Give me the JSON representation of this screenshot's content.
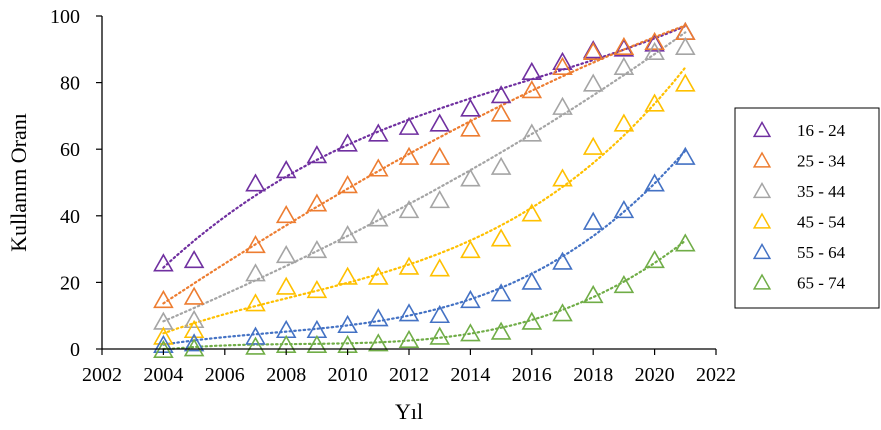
{
  "chart_data": {
    "type": "scatter",
    "xlabel": "Yıl",
    "ylabel": "Kullanım Oranı",
    "xlim": [
      2002,
      2022
    ],
    "ylim": [
      0,
      100
    ],
    "xticks": [
      "2002",
      "2004",
      "2006",
      "2008",
      "2010",
      "2012",
      "2014",
      "2016",
      "2018",
      "2020",
      "2022"
    ],
    "yticks": [
      "0",
      "20",
      "40",
      "60",
      "80",
      "100"
    ],
    "grid": false,
    "legend_position": "right",
    "marker": "open-triangle",
    "trendline": "polynomial-dotted",
    "series": [
      {
        "name": "16 - 24",
        "color": "#7030A0",
        "x": [
          2004,
          2005,
          2007,
          2008,
          2009,
          2010,
          2011,
          2012,
          2013,
          2014,
          2015,
          2016,
          2017,
          2018,
          2019,
          2020,
          2021
        ],
        "values": [
          26,
          27,
          50,
          54,
          58.5,
          62,
          65,
          67,
          68,
          72.5,
          76.5,
          83.5,
          86.5,
          90,
          90.5,
          92,
          95.5
        ]
      },
      {
        "name": "25 - 34",
        "color": "#ED7D31",
        "x": [
          2004,
          2005,
          2007,
          2008,
          2009,
          2010,
          2011,
          2012,
          2013,
          2014,
          2015,
          2016,
          2017,
          2018,
          2019,
          2020,
          2021
        ],
        "values": [
          15,
          16,
          31.5,
          40.5,
          44,
          49.5,
          54.5,
          58,
          58,
          66.5,
          71,
          78,
          85,
          89.5,
          91,
          92.5,
          95.5
        ]
      },
      {
        "name": "35 - 44",
        "color": "#A5A5A5",
        "x": [
          2004,
          2005,
          2007,
          2008,
          2009,
          2010,
          2011,
          2012,
          2013,
          2014,
          2015,
          2016,
          2017,
          2018,
          2019,
          2020,
          2021
        ],
        "values": [
          8.5,
          9,
          23,
          28.5,
          30,
          34.5,
          39.5,
          42,
          45,
          51.5,
          55,
          65,
          73,
          80,
          85,
          89.5,
          91
        ]
      },
      {
        "name": "45 - 54",
        "color": "#FFC000",
        "x": [
          2004,
          2005,
          2007,
          2008,
          2009,
          2010,
          2011,
          2012,
          2013,
          2014,
          2015,
          2016,
          2017,
          2018,
          2019,
          2020,
          2021
        ],
        "values": [
          4,
          6,
          14,
          19,
          18,
          22,
          22,
          25,
          24.5,
          30,
          33.5,
          41,
          51.5,
          61,
          68,
          74,
          80
        ]
      },
      {
        "name": "55 - 64",
        "color": "#4472C4",
        "x": [
          2004,
          2005,
          2007,
          2008,
          2009,
          2010,
          2011,
          2012,
          2013,
          2014,
          2015,
          2016,
          2017,
          2018,
          2019,
          2020,
          2021
        ],
        "values": [
          1.5,
          2,
          4,
          6,
          6,
          7.5,
          9.5,
          11,
          10.5,
          15,
          17,
          20.5,
          26.5,
          38.5,
          42,
          50,
          58
        ]
      },
      {
        "name": "65 - 74",
        "color": "#70AD47",
        "x": [
          2004,
          2005,
          2007,
          2008,
          2009,
          2010,
          2011,
          2012,
          2013,
          2014,
          2015,
          2016,
          2017,
          2018,
          2019,
          2020,
          2021
        ],
        "values": [
          0,
          0.5,
          1,
          1.5,
          1.5,
          1.5,
          2,
          3,
          4,
          5,
          5.5,
          8.5,
          11,
          16.5,
          19.5,
          27,
          32
        ]
      }
    ]
  }
}
